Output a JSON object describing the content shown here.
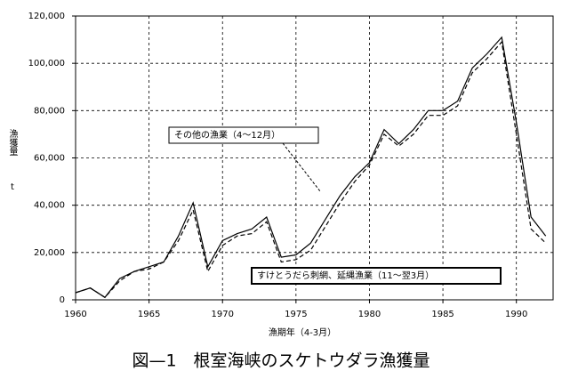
{
  "chart_data": {
    "type": "line",
    "caption": "図—1　根室海峡のスケトウダラ漁獲量",
    "y_label": "漁獲量",
    "y_unit": "t",
    "x_label": "漁期年（4-3月）",
    "x": [
      1960,
      1961,
      1962,
      1963,
      1964,
      1965,
      1966,
      1967,
      1968,
      1969,
      1970,
      1971,
      1972,
      1973,
      1974,
      1975,
      1976,
      1977,
      1978,
      1979,
      1980,
      1981,
      1982,
      1983,
      1984,
      1985,
      1986,
      1987,
      1988,
      1989,
      1990,
      1991,
      1992
    ],
    "series": [
      {
        "name": "その他の漁業（4～12月）",
        "color": "#000000",
        "dash": false,
        "values": [
          3000,
          5000,
          1000,
          9000,
          12000,
          14000,
          16000,
          27000,
          41000,
          14000,
          25000,
          28000,
          30000,
          35000,
          18000,
          19000,
          24000,
          34000,
          44000,
          52000,
          58000,
          72000,
          66000,
          72000,
          80000,
          80000,
          84000,
          98000,
          104000,
          111000,
          75000,
          35000,
          27000
        ]
      },
      {
        "name": "すけとうだら刺網、延縄漁業（11～翌3月）",
        "color": "#000000",
        "dash": true,
        "values": [
          3000,
          5000,
          1000,
          8000,
          12000,
          13000,
          16000,
          25000,
          38000,
          12000,
          23000,
          27000,
          28000,
          33000,
          16000,
          17000,
          21000,
          31000,
          41000,
          50000,
          57000,
          70000,
          65000,
          70000,
          78000,
          78000,
          82000,
          96000,
          102000,
          109000,
          70000,
          30000,
          24000
        ]
      }
    ],
    "xlim": [
      1960,
      1992.5
    ],
    "xticks": [
      1960,
      1965,
      1970,
      1975,
      1980,
      1985,
      1990
    ],
    "ylim": [
      0,
      120000
    ],
    "yticks": [
      0,
      {
        "value": 20000,
        "label": "20,000"
      },
      {
        "value": 40000,
        "label": "40,000"
      },
      {
        "value": 60000,
        "label": "60,000"
      },
      {
        "value": 80000,
        "label": "80,000"
      },
      {
        "value": 100000,
        "label": "100,000"
      },
      {
        "value": 120000,
        "label": "120,000"
      }
    ],
    "grid": true
  }
}
